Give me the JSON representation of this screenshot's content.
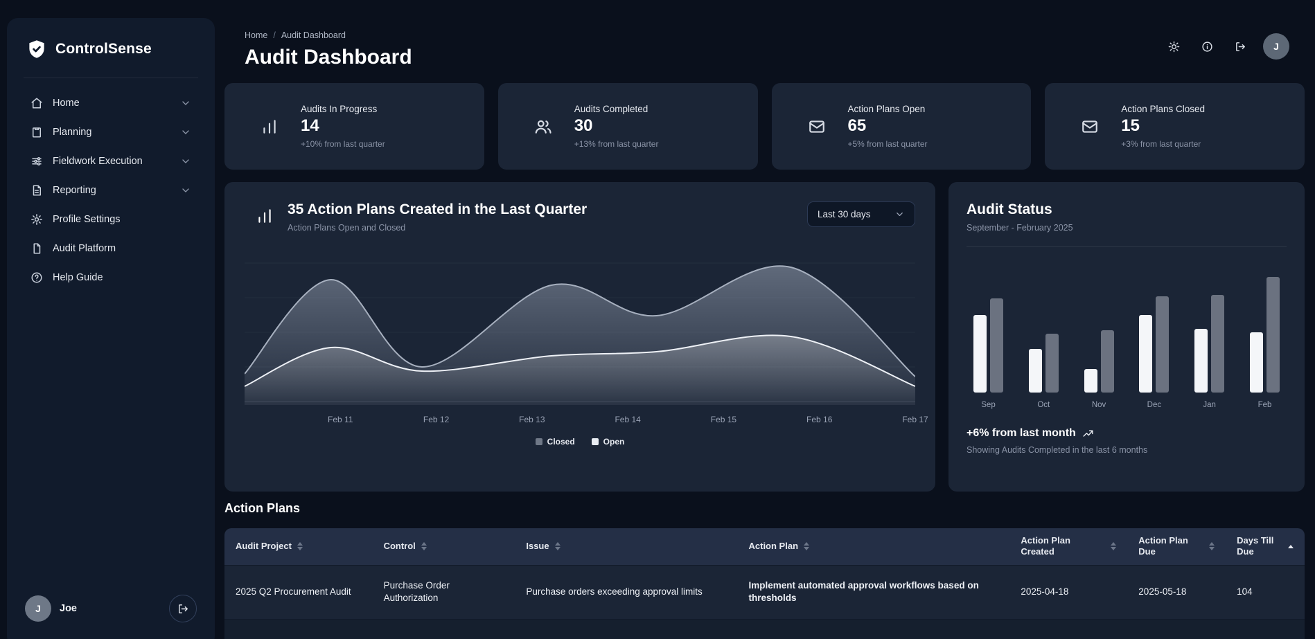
{
  "app": {
    "name": "ControlSense"
  },
  "colors": {
    "page_bg": "#0a101c",
    "sidebar_bg": "#111b2c",
    "card_bg": "#1b2536",
    "table_header_bg": "#242f46",
    "muted_text": "#8b94a7"
  },
  "sidebar": {
    "items": [
      {
        "label": "Home",
        "icon": "home-icon",
        "expandable": true
      },
      {
        "label": "Planning",
        "icon": "clipboard-icon",
        "expandable": true
      },
      {
        "label": "Fieldwork Execution",
        "icon": "sliders-icon",
        "expandable": true
      },
      {
        "label": "Reporting",
        "icon": "report-icon",
        "expandable": true
      },
      {
        "label": "Profile Settings",
        "icon": "gear-icon",
        "expandable": false
      },
      {
        "label": "Audit Platform",
        "icon": "document-icon",
        "expandable": false
      },
      {
        "label": "Help Guide",
        "icon": "help-icon",
        "expandable": false
      }
    ],
    "user": {
      "initial": "J",
      "name": "Joe"
    }
  },
  "header": {
    "breadcrumb": [
      "Home",
      "Audit Dashboard"
    ],
    "breadcrumb_separator": "/",
    "title": "Audit Dashboard",
    "actions": [
      {
        "name": "theme-toggle-button",
        "icon": "sun-icon"
      },
      {
        "name": "info-button",
        "icon": "info-icon"
      },
      {
        "name": "logout-button",
        "icon": "logout-icon"
      }
    ],
    "avatar_initial": "J"
  },
  "stats": [
    {
      "label": "Audits In Progress",
      "value": "14",
      "delta": "+10% from last quarter",
      "icon": "bar-chart-icon"
    },
    {
      "label": "Audits Completed",
      "value": "30",
      "delta": "+13% from last quarter",
      "icon": "users-icon"
    },
    {
      "label": "Action Plans Open",
      "value": "65",
      "delta": "+5% from last quarter",
      "icon": "mail-icon"
    },
    {
      "label": "Action Plans Closed",
      "value": "15",
      "delta": "+3% from last quarter",
      "icon": "mail-icon"
    }
  ],
  "trend_card": {
    "icon": "bar-chart-icon",
    "title": "35 Action Plans Created in the Last Quarter",
    "subtitle": "Action Plans Open and Closed",
    "range_value": "Last 30 days"
  },
  "status_card": {
    "title": "Audit Status",
    "subtitle": "September - February 2025",
    "delta": "+6% from last month",
    "note": "Showing Audits Completed in the last 6 months"
  },
  "action_plans": {
    "title": "Action Plans",
    "columns": [
      {
        "label": "Audit Project",
        "sort": "none"
      },
      {
        "label": "Control",
        "sort": "none"
      },
      {
        "label": "Issue",
        "sort": "none"
      },
      {
        "label": "Action Plan",
        "sort": "none"
      },
      {
        "label": "Action Plan Created",
        "sort": "none"
      },
      {
        "label": "Action Plan Due",
        "sort": "none"
      },
      {
        "label": "Days Till Due",
        "sort": "asc"
      }
    ],
    "rows": [
      {
        "audit_project": "2025 Q2 Procurement Audit",
        "control": "Purchase Order Authorization",
        "issue": "Purchase orders exceeding approval limits",
        "action_plan": "Implement automated approval workflows based on thresholds",
        "created": "2025-04-18",
        "due": "2025-05-18",
        "days_till_due": "104"
      }
    ]
  },
  "chart_data": [
    {
      "type": "area",
      "title": "35 Action Plans Created in the Last Quarter",
      "subtitle": "Action Plans Open and Closed",
      "x_tick_labels": [
        "Feb 11",
        "Feb 12",
        "Feb 13",
        "Feb 14",
        "Feb 15",
        "Feb 16",
        "Feb 17"
      ],
      "x_tick_positions": [
        1,
        2,
        3,
        4,
        5,
        6,
        7
      ],
      "x_domain": [
        0,
        7
      ],
      "y_domain": [
        0,
        100
      ],
      "grid": "horizontal",
      "legend_position": "bottom",
      "legend": [
        {
          "label": "Closed",
          "color": "#6f7887"
        },
        {
          "label": "Open",
          "color": "#e9edf3"
        }
      ],
      "series": [
        {
          "name": "Closed",
          "stroke": "#a7b0bf",
          "fill": "#98a2b3",
          "points": [
            [
              0,
              20
            ],
            [
              0.9,
              88
            ],
            [
              1.85,
              25
            ],
            [
              3.2,
              84
            ],
            [
              4.3,
              62
            ],
            [
              5.7,
              97
            ],
            [
              7,
              18
            ]
          ]
        },
        {
          "name": "Open",
          "stroke": "#eef1f6",
          "fill": "#ffffff",
          "points": [
            [
              0,
              11
            ],
            [
              0.9,
              39
            ],
            [
              1.85,
              22
            ],
            [
              3.2,
              33
            ],
            [
              4.3,
              36
            ],
            [
              5.7,
              47
            ],
            [
              7,
              11
            ]
          ]
        }
      ]
    },
    {
      "type": "bar",
      "title": "Audit Status",
      "categories": [
        "Sep",
        "Oct",
        "Nov",
        "Dec",
        "Jan",
        "Feb"
      ],
      "y_domain": [
        0,
        100
      ],
      "series": [
        {
          "name": "",
          "color": "#f4f6f9",
          "values": [
            66,
            37,
            20,
            66,
            54,
            51
          ]
        },
        {
          "name": "",
          "color": "#6b7280",
          "values": [
            80,
            50,
            53,
            82,
            83,
            98
          ]
        }
      ]
    }
  ]
}
